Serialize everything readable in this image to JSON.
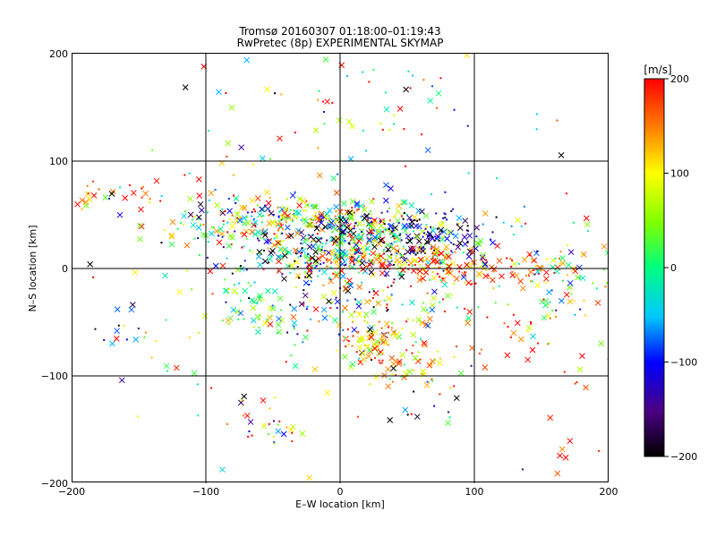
{
  "chart_data": {
    "type": "scatter",
    "title": "Tromsø 20160307 01:18:00–01:19:43",
    "subtitle": "RwPretec (8p) EXPERIMENTAL SKYMAP",
    "xlabel": "E–W location [km]",
    "ylabel": "N–S location [km]",
    "xlim": [
      -200,
      200
    ],
    "ylim": [
      -200,
      200
    ],
    "x_ticks": [
      -200,
      -100,
      0,
      100,
      200
    ],
    "y_ticks": [
      -200,
      -100,
      0,
      100,
      200
    ],
    "x_tick_labels": [
      "−200",
      "−100",
      "0",
      "100",
      "200"
    ],
    "y_tick_labels": [
      "−200",
      "−100",
      "0",
      "100",
      "200"
    ],
    "grid": true,
    "colorbar": {
      "unit": "[m/s]",
      "range": [
        -200,
        200
      ],
      "ticks": [
        200,
        100,
        0,
        -100,
        -200
      ],
      "tick_labels": [
        "200",
        "100",
        "0",
        "−100",
        "−200"
      ],
      "colors": [
        "#000000",
        "#4b0082",
        "#0000ff",
        "#00c8ff",
        "#00ff80",
        "#80ff00",
        "#ffff00",
        "#ff8000",
        "#ff0000"
      ]
    },
    "marker_types": [
      "x",
      "dot"
    ],
    "clusters": [
      {
        "cx": -185,
        "cy": 65,
        "sx": 12,
        "sy": 10,
        "n": 14,
        "v": 150,
        "vs": 80
      },
      {
        "cx": -140,
        "cy": 70,
        "sx": 15,
        "sy": 8,
        "n": 12,
        "v": 180,
        "vs": 50
      },
      {
        "cx": -40,
        "cy": 45,
        "sx": 45,
        "sy": 12,
        "n": 260,
        "v": 50,
        "vs": 120
      },
      {
        "cx": 20,
        "cy": 35,
        "sx": 40,
        "sy": 12,
        "n": 240,
        "v": -30,
        "vs": 130
      },
      {
        "cx": 70,
        "cy": 30,
        "sx": 25,
        "sy": 12,
        "n": 90,
        "v": -150,
        "vs": 60
      },
      {
        "cx": -20,
        "cy": 10,
        "sx": 40,
        "sy": 12,
        "n": 180,
        "v": 0,
        "vs": 140
      },
      {
        "cx": 60,
        "cy": 5,
        "sx": 40,
        "sy": 10,
        "n": 140,
        "v": 160,
        "vs": 60
      },
      {
        "cx": 130,
        "cy": 0,
        "sx": 30,
        "sy": 8,
        "n": 60,
        "v": 180,
        "vs": 40
      },
      {
        "cx": 170,
        "cy": -20,
        "sx": 25,
        "sy": 25,
        "n": 70,
        "v": 20,
        "vs": 80
      },
      {
        "cx": 10,
        "cy": -30,
        "sx": 40,
        "sy": 25,
        "n": 170,
        "v": 40,
        "vs": 140
      },
      {
        "cx": -65,
        "cy": -40,
        "sx": 14,
        "sy": 12,
        "n": 50,
        "v": 20,
        "vs": 60
      },
      {
        "cx": 25,
        "cy": -65,
        "sx": 12,
        "sy": 12,
        "n": 70,
        "v": 150,
        "vs": 60
      },
      {
        "cx": 55,
        "cy": -90,
        "sx": 15,
        "sy": 10,
        "n": 40,
        "v": 110,
        "vs": 60
      },
      {
        "cx": 130,
        "cy": -70,
        "sx": 20,
        "sy": 15,
        "n": 20,
        "v": 180,
        "vs": 40
      },
      {
        "cx": 170,
        "cy": -130,
        "sx": 20,
        "sy": 40,
        "n": 15,
        "v": 190,
        "vs": 20
      },
      {
        "cx": -55,
        "cy": -150,
        "sx": 15,
        "sy": 8,
        "n": 22,
        "v": 100,
        "vs": 120
      },
      {
        "cx": 30,
        "cy": 150,
        "sx": 40,
        "sy": 25,
        "n": 45,
        "v": 80,
        "vs": 140
      },
      {
        "cx": -80,
        "cy": 150,
        "sx": 30,
        "sy": 30,
        "n": 12,
        "v": 0,
        "vs": 180
      },
      {
        "cx": -150,
        "cy": -70,
        "sx": 20,
        "sy": 20,
        "n": 15,
        "v": -100,
        "vs": 150
      },
      {
        "cx": 65,
        "cy": -125,
        "sx": 15,
        "sy": 15,
        "n": 15,
        "v": 0,
        "vs": 180
      },
      {
        "cx": 0,
        "cy": 0,
        "sx": 110,
        "sy": 90,
        "n": 180,
        "v": 40,
        "vs": 150
      }
    ]
  }
}
